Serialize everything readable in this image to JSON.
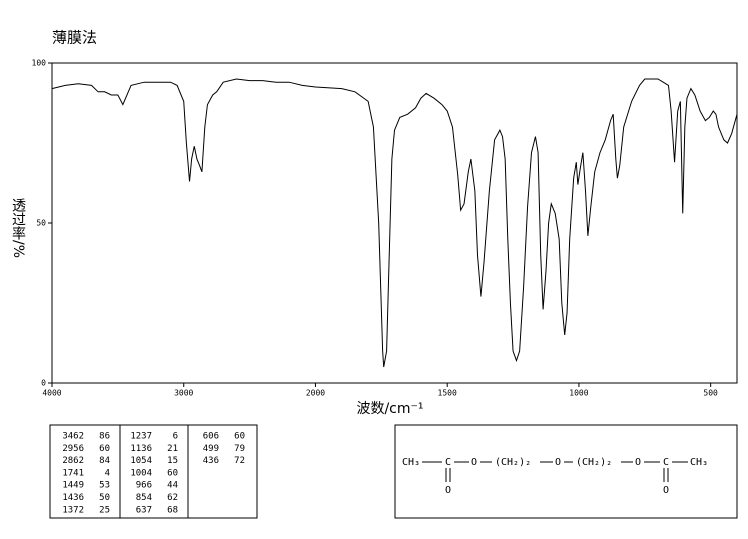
{
  "title": "薄膜法",
  "chart_data": {
    "type": "line",
    "x_label": "波数/cm⁻¹",
    "y_label": "透过率/%",
    "color": "#000000",
    "xlim": [
      4000,
      400
    ],
    "x_scale_break": 2000,
    "xticks": [
      4000,
      3000,
      2000,
      1500,
      1000,
      500
    ],
    "ylim": [
      0,
      100
    ],
    "yticks": [
      0,
      50,
      100
    ],
    "x": [
      4000,
      3900,
      3800,
      3700,
      3650,
      3600,
      3550,
      3500,
      3462,
      3400,
      3300,
      3200,
      3100,
      3050,
      3000,
      2980,
      2956,
      2940,
      2920,
      2900,
      2880,
      2862,
      2840,
      2820,
      2780,
      2750,
      2700,
      2600,
      2500,
      2400,
      2300,
      2200,
      2100,
      2000,
      1900,
      1850,
      1800,
      1780,
      1760,
      1745,
      1741,
      1730,
      1720,
      1710,
      1700,
      1680,
      1650,
      1620,
      1600,
      1580,
      1550,
      1520,
      1500,
      1480,
      1460,
      1449,
      1436,
      1420,
      1410,
      1395,
      1385,
      1372,
      1360,
      1340,
      1320,
      1300,
      1290,
      1280,
      1270,
      1260,
      1250,
      1237,
      1225,
      1210,
      1195,
      1180,
      1165,
      1155,
      1145,
      1136,
      1125,
      1115,
      1105,
      1090,
      1075,
      1065,
      1054,
      1045,
      1035,
      1020,
      1010,
      1004,
      995,
      985,
      975,
      966,
      955,
      940,
      920,
      900,
      880,
      870,
      860,
      854,
      845,
      830,
      800,
      770,
      750,
      700,
      680,
      660,
      650,
      637,
      625,
      615,
      606,
      598,
      590,
      575,
      560,
      540,
      520,
      505,
      490,
      480,
      470,
      460,
      450,
      436,
      420,
      400
    ],
    "values": [
      92,
      93,
      93.5,
      93,
      91,
      91,
      90,
      90,
      87,
      93,
      94,
      94,
      94,
      93,
      88,
      75,
      63,
      70,
      74,
      70,
      68,
      66,
      80,
      87,
      90,
      91,
      94,
      95,
      94.5,
      94.5,
      94,
      94,
      93,
      92.5,
      92,
      91,
      88,
      80,
      50,
      10,
      5,
      10,
      40,
      70,
      79,
      83,
      84,
      86,
      89,
      90.5,
      89,
      87,
      85,
      80,
      65,
      54,
      56,
      66,
      70,
      60,
      40,
      27,
      38,
      60,
      76,
      79,
      77,
      70,
      45,
      25,
      10,
      7,
      10,
      30,
      55,
      72,
      77,
      72,
      40,
      23,
      35,
      50,
      56,
      53,
      45,
      25,
      15,
      22,
      45,
      64,
      69,
      62,
      67,
      72,
      60,
      46,
      55,
      66,
      72,
      76,
      82,
      84,
      70,
      64,
      68,
      80,
      88,
      93,
      95,
      95,
      94,
      93,
      85,
      69,
      85,
      88,
      53,
      80,
      89,
      92,
      90,
      85,
      82,
      83,
      85,
      84,
      80,
      78,
      76,
      75,
      78,
      84
    ]
  },
  "peak_table": {
    "columns": [
      [
        [
          3462,
          86
        ],
        [
          2956,
          60
        ],
        [
          2862,
          84
        ],
        [
          1741,
          4
        ],
        [
          1449,
          53
        ],
        [
          1436,
          50
        ],
        [
          1372,
          25
        ]
      ],
      [
        [
          1237,
          6
        ],
        [
          1136,
          21
        ],
        [
          1054,
          15
        ],
        [
          1004,
          60
        ],
        [
          966,
          44
        ],
        [
          854,
          62
        ],
        [
          637,
          68
        ]
      ],
      [
        [
          606,
          60
        ],
        [
          499,
          79
        ],
        [
          436,
          72
        ]
      ]
    ]
  },
  "structure": {
    "atoms": [
      "CH₃",
      "C",
      "O",
      "(CH₂)₂",
      "O",
      "(CH₂)₂",
      "O",
      "C",
      "CH₃"
    ],
    "carbonyl_oxygens": [
      "O",
      "O"
    ]
  }
}
